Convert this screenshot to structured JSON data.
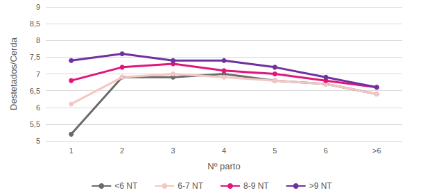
{
  "chart_data": {
    "type": "line",
    "y_label": "Destetados/Cerda",
    "x_label": "Nº parto",
    "categories": [
      "1",
      "2",
      "3",
      "4",
      "5",
      "6",
      ">6"
    ],
    "series": [
      {
        "name": "<6 NT",
        "color": "#6b6b6b",
        "values": [
          5.2,
          6.9,
          6.9,
          7.0,
          6.8,
          6.7,
          6.4
        ]
      },
      {
        "name": "6-7 NT",
        "color": "#f5c6c2",
        "values": [
          6.1,
          6.9,
          7.0,
          6.9,
          6.8,
          6.7,
          6.4
        ]
      },
      {
        "name": "8-9 NT",
        "color": "#e0167b",
        "values": [
          6.8,
          7.2,
          7.3,
          7.1,
          7.0,
          6.8,
          6.6
        ]
      },
      {
        "name": ">9 NT",
        "color": "#7030a0",
        "values": [
          7.4,
          7.6,
          7.4,
          7.4,
          7.2,
          6.9,
          6.6
        ]
      }
    ],
    "ylim": [
      5,
      9
    ],
    "yticks": [
      5,
      {
        "value": 5.5,
        "label": "5,5"
      },
      6,
      {
        "value": 6.5,
        "label": "6,5"
      },
      7,
      {
        "value": 7.5,
        "label": "7,5"
      },
      8,
      {
        "value": 8.5,
        "label": "8,5"
      },
      9
    ],
    "grid": true,
    "legend": "bottom",
    "marker": "circle"
  }
}
